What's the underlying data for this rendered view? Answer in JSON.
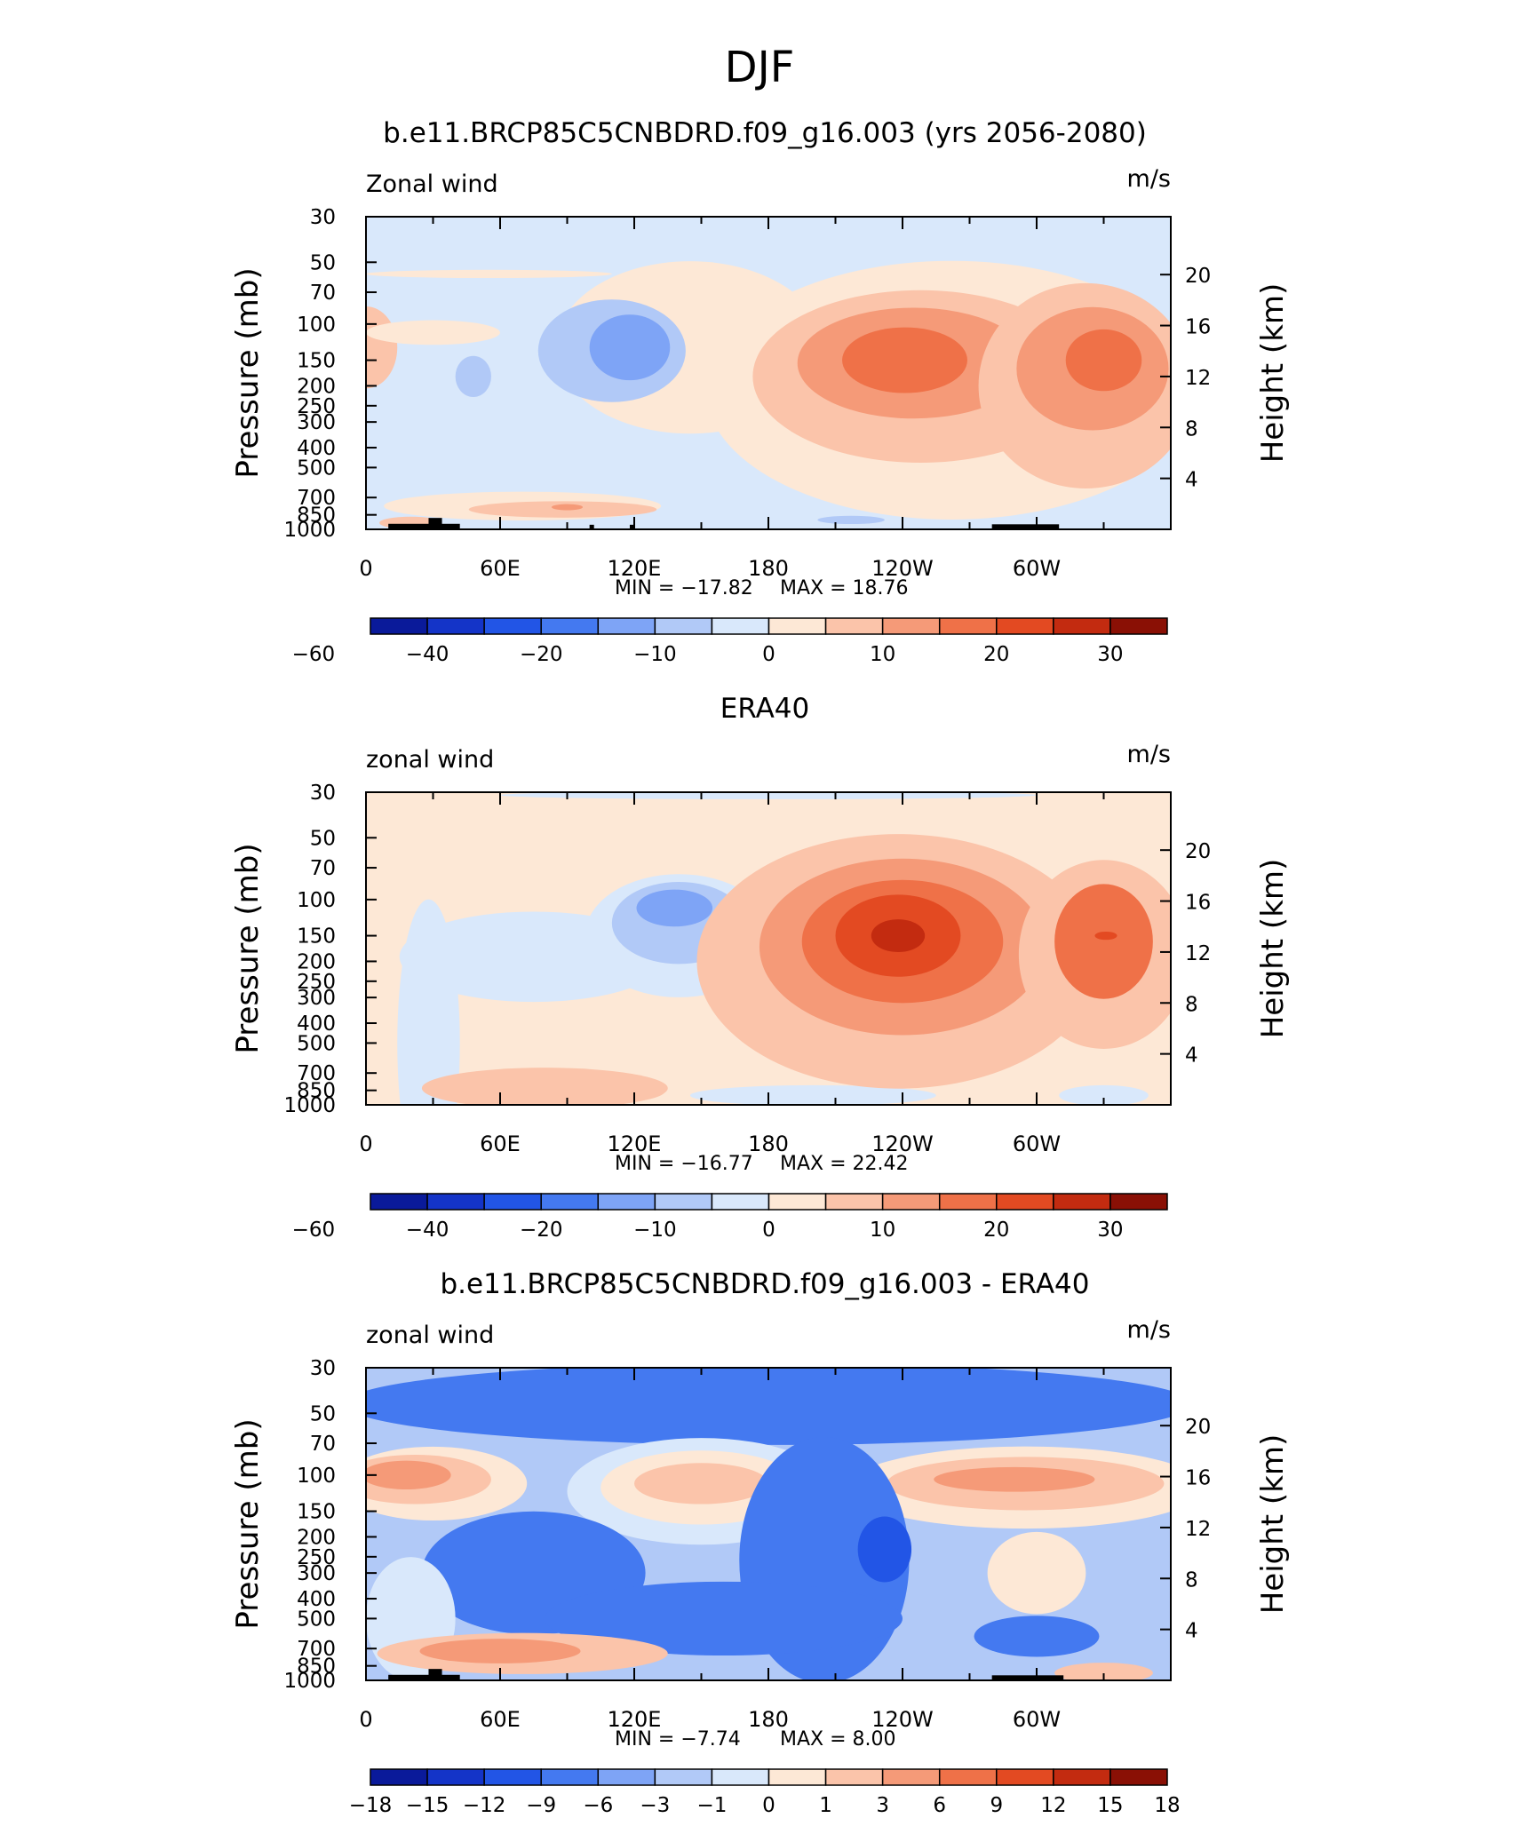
{
  "figure_title": "DJF",
  "colors": {
    "low_levels": [
      "#0a1a9a",
      "#1434c8",
      "#2255e6",
      "#4479f0",
      "#7ea4f6",
      "#b1c9f7",
      "#d9e8fb"
    ],
    "high_levels": [
      "#fde8d6",
      "#fbc4aa",
      "#f59a78",
      "#ef7148",
      "#e34a22",
      "#c32b10",
      "#8a1005"
    ],
    "land": "#000000"
  },
  "chart_data": [
    {
      "type": "heatmap",
      "title": "b.e11.BRCP85C5CNBDRD.f09_g16.003 (yrs 2056-2080)",
      "left_label": "Zonal wind",
      "right_label": "m/s",
      "ylabel": "Pressure (mb)",
      "ylabel_right": "Height (km)",
      "x_tick_labels": [
        "0",
        "60E",
        "120E",
        "180",
        "120W",
        "60W"
      ],
      "x_tick_lon": [
        0,
        60,
        120,
        180,
        240,
        300
      ],
      "xlim": [
        0,
        360
      ],
      "y_tick_labels": [
        "30",
        "50",
        "70",
        "100",
        "150",
        "200",
        "250",
        "300",
        "400",
        "500",
        "700",
        "850",
        "1000"
      ],
      "y_ticks": [
        30,
        50,
        70,
        100,
        150,
        200,
        250,
        300,
        400,
        500,
        700,
        850,
        1000
      ],
      "ylim": [
        1000,
        30
      ],
      "y_scale": "log",
      "height_tick_labels": [
        "20",
        "16",
        "12",
        "8",
        "4"
      ],
      "heights_km": [
        20,
        16,
        12,
        8,
        4
      ],
      "min_text": "MIN = −17.82",
      "max_text": "MAX = 18.76",
      "colorbar_labels": [
        "−60",
        "−40",
        "−20",
        "−10",
        "0",
        "10",
        "20",
        "30"
      ],
      "background": "#d9e8fb",
      "regions": [
        {
          "lon": 0,
          "p": 130,
          "rlon": 14,
          "rlogp": 0.2,
          "level": 8
        },
        {
          "lon": 30,
          "p": 110,
          "rlon": 30,
          "rlogp": 0.06,
          "level": 7
        },
        {
          "lon": 55,
          "p": 57,
          "rlon": 55,
          "rlogp": 0.02,
          "level": 7
        },
        {
          "lon": 145,
          "p": 130,
          "rlon": 60,
          "rlogp": 0.42,
          "level": 7
        },
        {
          "lon": 110,
          "p": 135,
          "rlon": 33,
          "rlogp": 0.25,
          "level": 5
        },
        {
          "lon": 118,
          "p": 130,
          "rlon": 18,
          "rlogp": 0.16,
          "level": 4
        },
        {
          "lon": 48,
          "p": 180,
          "rlon": 8,
          "rlogp": 0.1,
          "level": 5
        },
        {
          "lon": 70,
          "p": 770,
          "rlon": 62,
          "rlogp": 0.07,
          "level": 7
        },
        {
          "lon": 88,
          "p": 800,
          "rlon": 42,
          "rlogp": 0.04,
          "level": 8
        },
        {
          "lon": 90,
          "p": 780,
          "rlon": 7,
          "rlogp": 0.015,
          "level": 9
        },
        {
          "lon": 20,
          "p": 930,
          "rlon": 14,
          "rlogp": 0.03,
          "level": 8
        },
        {
          "lon": 262,
          "p": 210,
          "rlon": 110,
          "rlogp": 0.63,
          "level": 7
        },
        {
          "lon": 248,
          "p": 180,
          "rlon": 75,
          "rlogp": 0.42,
          "level": 8
        },
        {
          "lon": 245,
          "p": 155,
          "rlon": 52,
          "rlogp": 0.27,
          "level": 9
        },
        {
          "lon": 241,
          "p": 150,
          "rlon": 28,
          "rlogp": 0.16,
          "level": 10
        },
        {
          "lon": 322,
          "p": 200,
          "rlon": 48,
          "rlogp": 0.5,
          "level": 8
        },
        {
          "lon": 325,
          "p": 165,
          "rlon": 34,
          "rlogp": 0.3,
          "level": 9
        },
        {
          "lon": 330,
          "p": 150,
          "rlon": 17,
          "rlogp": 0.15,
          "level": 10
        },
        {
          "lon": 217,
          "p": 900,
          "rlon": 15,
          "rlogp": 0.02,
          "level": 5
        }
      ],
      "land": [
        {
          "lon0": 10,
          "lon1": 42,
          "p": 940
        },
        {
          "lon0": 28,
          "lon1": 34,
          "p": 880
        },
        {
          "lon0": 100,
          "lon1": 102,
          "p": 950
        },
        {
          "lon0": 118,
          "lon1": 120,
          "p": 950
        },
        {
          "lon0": 280,
          "lon1": 310,
          "p": 945
        }
      ]
    },
    {
      "type": "heatmap",
      "title": "ERA40",
      "left_label": "zonal wind",
      "right_label": "m/s",
      "ylabel": "Pressure (mb)",
      "ylabel_right": "Height (km)",
      "x_tick_labels": [
        "0",
        "60E",
        "120E",
        "180",
        "120W",
        "60W"
      ],
      "x_tick_lon": [
        0,
        60,
        120,
        180,
        240,
        300
      ],
      "xlim": [
        0,
        360
      ],
      "y_tick_labels": [
        "30",
        "50",
        "70",
        "100",
        "150",
        "200",
        "250",
        "300",
        "400",
        "500",
        "700",
        "850",
        "1000"
      ],
      "y_ticks": [
        30,
        50,
        70,
        100,
        150,
        200,
        250,
        300,
        400,
        500,
        700,
        850,
        1000
      ],
      "ylim": [
        1000,
        30
      ],
      "y_scale": "log",
      "height_tick_labels": [
        "20",
        "16",
        "12",
        "8",
        "4"
      ],
      "heights_km": [
        20,
        16,
        12,
        8,
        4
      ],
      "min_text": "MIN = −16.77",
      "max_text": "MAX = 22.42",
      "colorbar_labels": [
        "−60",
        "−40",
        "−20",
        "−10",
        "0",
        "10",
        "20",
        "30"
      ],
      "background": "#fde8d6",
      "regions": [
        {
          "lon": 180,
          "p": 31,
          "rlon": 120,
          "rlogp": 0.02,
          "level": 6
        },
        {
          "lon": 28,
          "p": 500,
          "rlon": 14,
          "rlogp": 0.7,
          "level": 6
        },
        {
          "lon": 75,
          "p": 190,
          "rlon": 60,
          "rlogp": 0.22,
          "level": 6
        },
        {
          "lon": 140,
          "p": 150,
          "rlon": 42,
          "rlogp": 0.3,
          "level": 6
        },
        {
          "lon": 140,
          "p": 130,
          "rlon": 30,
          "rlogp": 0.2,
          "level": 5
        },
        {
          "lon": 138,
          "p": 110,
          "rlon": 17,
          "rlogp": 0.09,
          "level": 4
        },
        {
          "lon": 80,
          "p": 830,
          "rlon": 55,
          "rlogp": 0.1,
          "level": 8
        },
        {
          "lon": 110,
          "p": 850,
          "rlon": 24,
          "rlogp": 0.06,
          "level": 8
        },
        {
          "lon": 200,
          "p": 900,
          "rlon": 55,
          "rlogp": 0.05,
          "level": 6
        },
        {
          "lon": 238,
          "p": 200,
          "rlon": 90,
          "rlogp": 0.62,
          "level": 8
        },
        {
          "lon": 240,
          "p": 170,
          "rlon": 64,
          "rlogp": 0.43,
          "level": 9
        },
        {
          "lon": 240,
          "p": 160,
          "rlon": 45,
          "rlogp": 0.3,
          "level": 10
        },
        {
          "lon": 238,
          "p": 150,
          "rlon": 28,
          "rlogp": 0.2,
          "level": 11
        },
        {
          "lon": 238,
          "p": 150,
          "rlon": 12,
          "rlogp": 0.08,
          "level": 12
        },
        {
          "lon": 330,
          "p": 185,
          "rlon": 38,
          "rlogp": 0.46,
          "level": 8
        },
        {
          "lon": 330,
          "p": 160,
          "rlon": 22,
          "rlogp": 0.28,
          "level": 10
        },
        {
          "lon": 331,
          "p": 150,
          "rlon": 5,
          "rlogp": 0.02,
          "level": 11
        },
        {
          "lon": 330,
          "p": 900,
          "rlon": 20,
          "rlogp": 0.05,
          "level": 6
        }
      ],
      "land": []
    },
    {
      "type": "heatmap",
      "title": "b.e11.BRCP85C5CNBDRD.f09_g16.003 - ERA40",
      "left_label": "zonal wind",
      "right_label": "m/s",
      "ylabel": "Pressure (mb)",
      "ylabel_right": "Height (km)",
      "x_tick_labels": [
        "0",
        "60E",
        "120E",
        "180",
        "120W",
        "60W"
      ],
      "x_tick_lon": [
        0,
        60,
        120,
        180,
        240,
        300
      ],
      "xlim": [
        0,
        360
      ],
      "y_tick_labels": [
        "30",
        "50",
        "70",
        "100",
        "150",
        "200",
        "250",
        "300",
        "400",
        "500",
        "700",
        "850",
        "1000"
      ],
      "y_ticks": [
        30,
        50,
        70,
        100,
        150,
        200,
        250,
        300,
        400,
        500,
        700,
        850,
        1000
      ],
      "ylim": [
        1000,
        30
      ],
      "y_scale": "log",
      "height_tick_labels": [
        "20",
        "16",
        "12",
        "8",
        "4"
      ],
      "heights_km": [
        20,
        16,
        12,
        8,
        4
      ],
      "min_text": "MIN = −7.74",
      "max_text": "MAX = 8.00",
      "colorbar_labels": [
        "−18",
        "−15",
        "−12",
        "−9",
        "−6",
        "−3",
        "−1",
        "0",
        "1",
        "3",
        "6",
        "9",
        "12",
        "15",
        "18"
      ],
      "background": "#b1c9f7",
      "regions": [
        {
          "lon": 180,
          "p": 45,
          "rlon": 190,
          "rlogp": 0.2,
          "level": 3
        },
        {
          "lon": 30,
          "p": 110,
          "rlon": 42,
          "rlogp": 0.18,
          "level": 7
        },
        {
          "lon": 22,
          "p": 105,
          "rlon": 34,
          "rlogp": 0.12,
          "level": 8
        },
        {
          "lon": 18,
          "p": 100,
          "rlon": 20,
          "rlogp": 0.07,
          "level": 9
        },
        {
          "lon": 150,
          "p": 120,
          "rlon": 60,
          "rlogp": 0.26,
          "level": 6
        },
        {
          "lon": 150,
          "p": 115,
          "rlon": 45,
          "rlogp": 0.18,
          "level": 7
        },
        {
          "lon": 150,
          "p": 110,
          "rlon": 30,
          "rlogp": 0.1,
          "level": 8
        },
        {
          "lon": 295,
          "p": 115,
          "rlon": 80,
          "rlogp": 0.2,
          "level": 7
        },
        {
          "lon": 295,
          "p": 110,
          "rlon": 62,
          "rlogp": 0.13,
          "level": 8
        },
        {
          "lon": 290,
          "p": 105,
          "rlon": 36,
          "rlogp": 0.06,
          "level": 9
        },
        {
          "lon": 205,
          "p": 260,
          "rlon": 38,
          "rlogp": 0.6,
          "level": 3
        },
        {
          "lon": 232,
          "p": 230,
          "rlon": 12,
          "rlogp": 0.16,
          "level": 2
        },
        {
          "lon": 75,
          "p": 300,
          "rlon": 50,
          "rlogp": 0.3,
          "level": 3
        },
        {
          "lon": 160,
          "p": 500,
          "rlon": 80,
          "rlogp": 0.18,
          "level": 3
        },
        {
          "lon": 300,
          "p": 300,
          "rlon": 22,
          "rlogp": 0.2,
          "level": 7
        },
        {
          "lon": 300,
          "p": 610,
          "rlon": 28,
          "rlogp": 0.1,
          "level": 3
        },
        {
          "lon": 20,
          "p": 500,
          "rlon": 20,
          "rlogp": 0.3,
          "level": 6
        },
        {
          "lon": 70,
          "p": 740,
          "rlon": 65,
          "rlogp": 0.1,
          "level": 8
        },
        {
          "lon": 60,
          "p": 720,
          "rlon": 36,
          "rlogp": 0.06,
          "level": 9
        },
        {
          "lon": 330,
          "p": 920,
          "rlon": 22,
          "rlogp": 0.05,
          "level": 8
        }
      ],
      "land": [
        {
          "lon0": 10,
          "lon1": 42,
          "p": 940
        },
        {
          "lon0": 28,
          "lon1": 34,
          "p": 880
        },
        {
          "lon0": 280,
          "lon1": 312,
          "p": 945
        }
      ]
    }
  ]
}
